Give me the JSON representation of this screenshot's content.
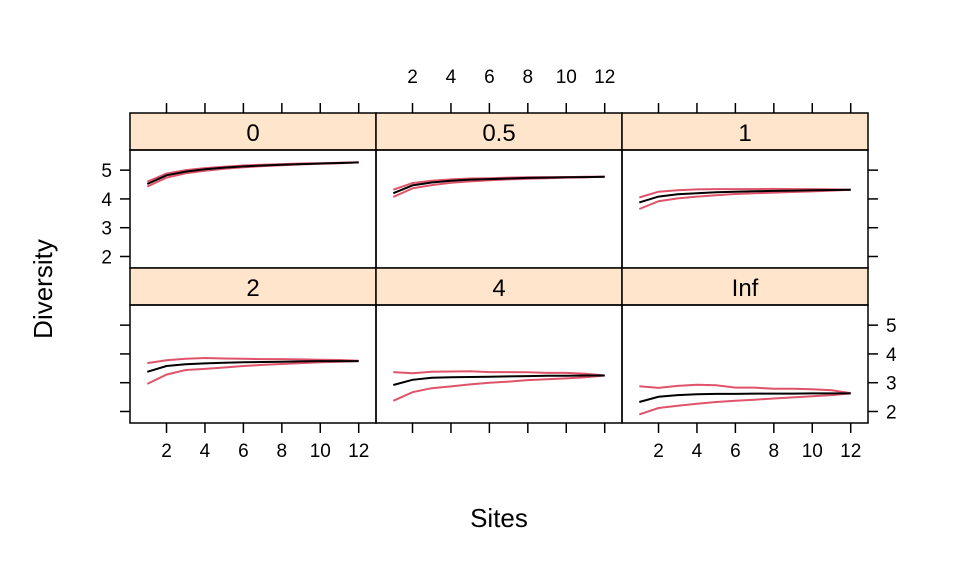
{
  "chart_data": {
    "type": "line",
    "layout": "trellis-3x2",
    "xlabel": "Sites",
    "ylabel": "Diversity",
    "xlim": [
      0.1,
      12.9
    ],
    "ylim": [
      1.6,
      5.7
    ],
    "x_ticks": [
      2,
      4,
      6,
      8,
      10,
      12
    ],
    "y_ticks": [
      2,
      3,
      4,
      5
    ],
    "x": [
      1,
      2,
      3,
      4,
      5,
      6,
      7,
      8,
      9,
      10,
      11,
      12
    ],
    "colors": {
      "strip_bg": "#ffe5cc",
      "mean_line": "#000000",
      "bound_line": "#df536b"
    },
    "panels": [
      {
        "label": "0",
        "mean": [
          4.52,
          4.82,
          4.95,
          5.03,
          5.09,
          5.13,
          5.16,
          5.19,
          5.21,
          5.23,
          5.25,
          5.27
        ],
        "upper": [
          4.6,
          4.88,
          5.0,
          5.07,
          5.12,
          5.16,
          5.19,
          5.21,
          5.23,
          5.24,
          5.26,
          5.27
        ],
        "lower": [
          4.43,
          4.74,
          4.89,
          4.98,
          5.05,
          5.1,
          5.14,
          5.17,
          5.2,
          5.22,
          5.24,
          5.27
        ]
      },
      {
        "label": "0.5",
        "mean": [
          4.2,
          4.47,
          4.57,
          4.63,
          4.67,
          4.69,
          4.71,
          4.73,
          4.74,
          4.75,
          4.76,
          4.77
        ],
        "upper": [
          4.32,
          4.55,
          4.63,
          4.68,
          4.71,
          4.72,
          4.74,
          4.75,
          4.76,
          4.76,
          4.77,
          4.77
        ],
        "lower": [
          4.07,
          4.37,
          4.48,
          4.56,
          4.61,
          4.65,
          4.68,
          4.7,
          4.72,
          4.74,
          4.75,
          4.77
        ]
      },
      {
        "label": "1",
        "mean": [
          3.88,
          4.08,
          4.16,
          4.2,
          4.23,
          4.25,
          4.27,
          4.28,
          4.29,
          4.3,
          4.31,
          4.32
        ],
        "upper": [
          4.05,
          4.25,
          4.3,
          4.33,
          4.34,
          4.34,
          4.34,
          4.35,
          4.34,
          4.34,
          4.33,
          4.32
        ],
        "lower": [
          3.65,
          3.92,
          4.02,
          4.08,
          4.13,
          4.17,
          4.2,
          4.22,
          4.24,
          4.26,
          4.29,
          4.32
        ]
      },
      {
        "label": "2",
        "mean": [
          3.38,
          3.58,
          3.64,
          3.67,
          3.69,
          3.71,
          3.72,
          3.73,
          3.74,
          3.75,
          3.75,
          3.75
        ],
        "upper": [
          3.68,
          3.78,
          3.83,
          3.86,
          3.84,
          3.83,
          3.82,
          3.82,
          3.81,
          3.8,
          3.79,
          3.76
        ],
        "lower": [
          2.96,
          3.28,
          3.44,
          3.48,
          3.53,
          3.58,
          3.62,
          3.65,
          3.68,
          3.71,
          3.73,
          3.75
        ]
      },
      {
        "label": "4",
        "mean": [
          2.92,
          3.1,
          3.17,
          3.19,
          3.2,
          3.21,
          3.22,
          3.23,
          3.24,
          3.24,
          3.25,
          3.25
        ],
        "upper": [
          3.37,
          3.33,
          3.38,
          3.39,
          3.4,
          3.37,
          3.37,
          3.36,
          3.34,
          3.34,
          3.31,
          3.25
        ],
        "lower": [
          2.37,
          2.67,
          2.81,
          2.87,
          2.94,
          3.0,
          3.04,
          3.09,
          3.12,
          3.15,
          3.19,
          3.25
        ]
      },
      {
        "label": "Inf",
        "mean": [
          2.33,
          2.51,
          2.57,
          2.6,
          2.61,
          2.61,
          2.62,
          2.62,
          2.62,
          2.63,
          2.63,
          2.63
        ],
        "upper": [
          2.88,
          2.82,
          2.89,
          2.93,
          2.91,
          2.83,
          2.83,
          2.79,
          2.79,
          2.77,
          2.74,
          2.64
        ],
        "lower": [
          1.9,
          2.12,
          2.2,
          2.27,
          2.33,
          2.37,
          2.41,
          2.45,
          2.49,
          2.53,
          2.57,
          2.63
        ]
      }
    ]
  }
}
